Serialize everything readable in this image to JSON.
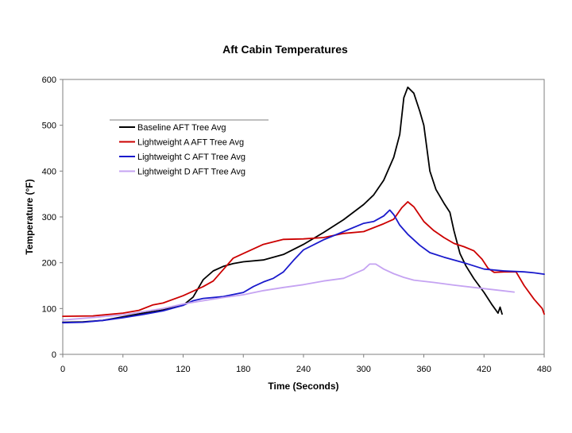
{
  "chart_data": {
    "type": "line",
    "title": "Aft Cabin Temperatures",
    "xlabel": "Time (Seconds)",
    "ylabel": "Temperature (°F)",
    "xlim": [
      0,
      480
    ],
    "ylim": [
      0,
      600
    ],
    "xticks": [
      0,
      60,
      120,
      180,
      240,
      300,
      360,
      420,
      480
    ],
    "yticks": [
      0,
      100,
      200,
      300,
      400,
      500,
      600
    ],
    "grid": false,
    "legend_position": "upper-left",
    "series": [
      {
        "name": "Baseline AFT Tree Avg",
        "color": "#000000",
        "points": [
          [
            0,
            70
          ],
          [
            20,
            71
          ],
          [
            40,
            74
          ],
          [
            60,
            82
          ],
          [
            80,
            90
          ],
          [
            100,
            97
          ],
          [
            120,
            107
          ],
          [
            130,
            125
          ],
          [
            140,
            163
          ],
          [
            150,
            182
          ],
          [
            160,
            192
          ],
          [
            170,
            198
          ],
          [
            180,
            202
          ],
          [
            200,
            206
          ],
          [
            220,
            218
          ],
          [
            240,
            240
          ],
          [
            260,
            266
          ],
          [
            280,
            294
          ],
          [
            300,
            327
          ],
          [
            310,
            348
          ],
          [
            320,
            380
          ],
          [
            330,
            430
          ],
          [
            336,
            480
          ],
          [
            340,
            560
          ],
          [
            344,
            583
          ],
          [
            350,
            570
          ],
          [
            356,
            530
          ],
          [
            360,
            500
          ],
          [
            366,
            400
          ],
          [
            372,
            360
          ],
          [
            380,
            330
          ],
          [
            386,
            310
          ],
          [
            390,
            270
          ],
          [
            396,
            220
          ],
          [
            402,
            193
          ],
          [
            410,
            165
          ],
          [
            420,
            135
          ],
          [
            428,
            108
          ],
          [
            434,
            90
          ],
          [
            436,
            103
          ],
          [
            438,
            88
          ]
        ]
      },
      {
        "name": "Lightweight A AFT Tree Avg",
        "color": "#cc0000",
        "points": [
          [
            0,
            83
          ],
          [
            30,
            84
          ],
          [
            60,
            90
          ],
          [
            76,
            96
          ],
          [
            90,
            108
          ],
          [
            100,
            112
          ],
          [
            120,
            128
          ],
          [
            140,
            148
          ],
          [
            150,
            160
          ],
          [
            160,
            185
          ],
          [
            170,
            210
          ],
          [
            180,
            220
          ],
          [
            200,
            240
          ],
          [
            220,
            251
          ],
          [
            240,
            252
          ],
          [
            260,
            255
          ],
          [
            280,
            264
          ],
          [
            300,
            268
          ],
          [
            320,
            285
          ],
          [
            330,
            295
          ],
          [
            338,
            320
          ],
          [
            344,
            333
          ],
          [
            350,
            322
          ],
          [
            360,
            290
          ],
          [
            370,
            270
          ],
          [
            380,
            255
          ],
          [
            390,
            242
          ],
          [
            400,
            235
          ],
          [
            410,
            226
          ],
          [
            418,
            208
          ],
          [
            424,
            188
          ],
          [
            430,
            179
          ],
          [
            440,
            180
          ],
          [
            452,
            180
          ],
          [
            460,
            150
          ],
          [
            470,
            120
          ],
          [
            478,
            100
          ],
          [
            480,
            88
          ]
        ]
      },
      {
        "name": "Lightweight C AFT Tree Avg",
        "color": "#1a1acc",
        "points": [
          [
            0,
            69
          ],
          [
            20,
            70
          ],
          [
            40,
            74
          ],
          [
            60,
            80
          ],
          [
            80,
            87
          ],
          [
            100,
            95
          ],
          [
            120,
            107
          ],
          [
            130,
            117
          ],
          [
            140,
            122
          ],
          [
            160,
            126
          ],
          [
            180,
            135
          ],
          [
            190,
            148
          ],
          [
            200,
            158
          ],
          [
            210,
            166
          ],
          [
            220,
            180
          ],
          [
            230,
            205
          ],
          [
            240,
            228
          ],
          [
            260,
            250
          ],
          [
            280,
            268
          ],
          [
            300,
            286
          ],
          [
            310,
            290
          ],
          [
            320,
            302
          ],
          [
            326,
            315
          ],
          [
            330,
            305
          ],
          [
            336,
            282
          ],
          [
            344,
            262
          ],
          [
            356,
            238
          ],
          [
            366,
            222
          ],
          [
            380,
            212
          ],
          [
            400,
            200
          ],
          [
            420,
            186
          ],
          [
            440,
            182
          ],
          [
            460,
            180
          ],
          [
            470,
            178
          ],
          [
            480,
            175
          ]
        ]
      },
      {
        "name": "Lightweight D AFT Tree Avg",
        "color": "#c5a3f2",
        "points": [
          [
            0,
            75
          ],
          [
            60,
            86
          ],
          [
            100,
            100
          ],
          [
            120,
            110
          ],
          [
            140,
            117
          ],
          [
            160,
            124
          ],
          [
            180,
            130
          ],
          [
            200,
            139
          ],
          [
            220,
            146
          ],
          [
            240,
            152
          ],
          [
            260,
            160
          ],
          [
            280,
            166
          ],
          [
            300,
            185
          ],
          [
            306,
            197
          ],
          [
            312,
            197
          ],
          [
            320,
            186
          ],
          [
            330,
            176
          ],
          [
            340,
            168
          ],
          [
            350,
            162
          ],
          [
            370,
            157
          ],
          [
            390,
            151
          ],
          [
            410,
            146
          ],
          [
            430,
            141
          ],
          [
            450,
            136
          ]
        ]
      }
    ]
  }
}
